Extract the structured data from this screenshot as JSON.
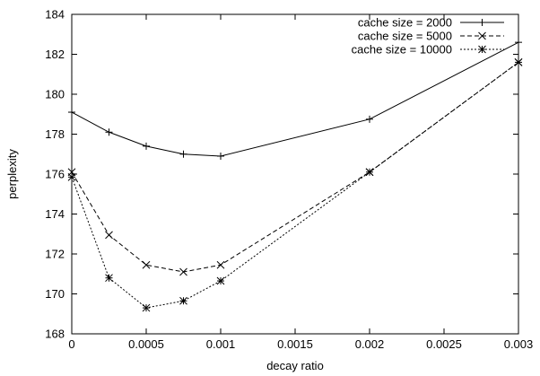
{
  "chart_data": {
    "type": "line",
    "xlabel": "decay ratio",
    "ylabel": "perplexity",
    "xlim": [
      0,
      0.003
    ],
    "ylim": [
      168,
      184
    ],
    "xticks": [
      "0",
      "0.0005",
      "0.001",
      "0.0015",
      "0.002",
      "0.0025",
      "0.003"
    ],
    "xtick_values": [
      0,
      0.0005,
      0.001,
      0.0015,
      0.002,
      0.0025,
      0.003
    ],
    "yticks": [
      "168",
      "170",
      "172",
      "174",
      "176",
      "178",
      "180",
      "182",
      "184"
    ],
    "ytick_values": [
      168,
      170,
      172,
      174,
      176,
      178,
      180,
      182,
      184
    ],
    "grid": false,
    "legend_position": "top-right",
    "series": [
      {
        "name": "cache size = 2000",
        "marker": "plus",
        "dash": "solid",
        "x": [
          0,
          0.00025,
          0.0005,
          0.00075,
          0.001,
          0.002,
          0.003
        ],
        "y": [
          179.1,
          178.1,
          177.4,
          177.0,
          176.9,
          178.75,
          182.6
        ]
      },
      {
        "name": "cache size = 5000",
        "marker": "cross",
        "dash": "dashed",
        "x": [
          0,
          0.00025,
          0.0005,
          0.00075,
          0.001,
          0.002,
          0.003
        ],
        "y": [
          176.1,
          172.95,
          171.45,
          171.1,
          171.45,
          176.1,
          181.6
        ]
      },
      {
        "name": "cache size = 10000",
        "marker": "star",
        "dash": "dotted",
        "x": [
          0,
          0.00025,
          0.0005,
          0.00075,
          0.001,
          0.002,
          0.003
        ],
        "y": [
          175.85,
          170.8,
          169.3,
          169.65,
          170.65,
          176.1,
          181.6
        ]
      }
    ]
  }
}
